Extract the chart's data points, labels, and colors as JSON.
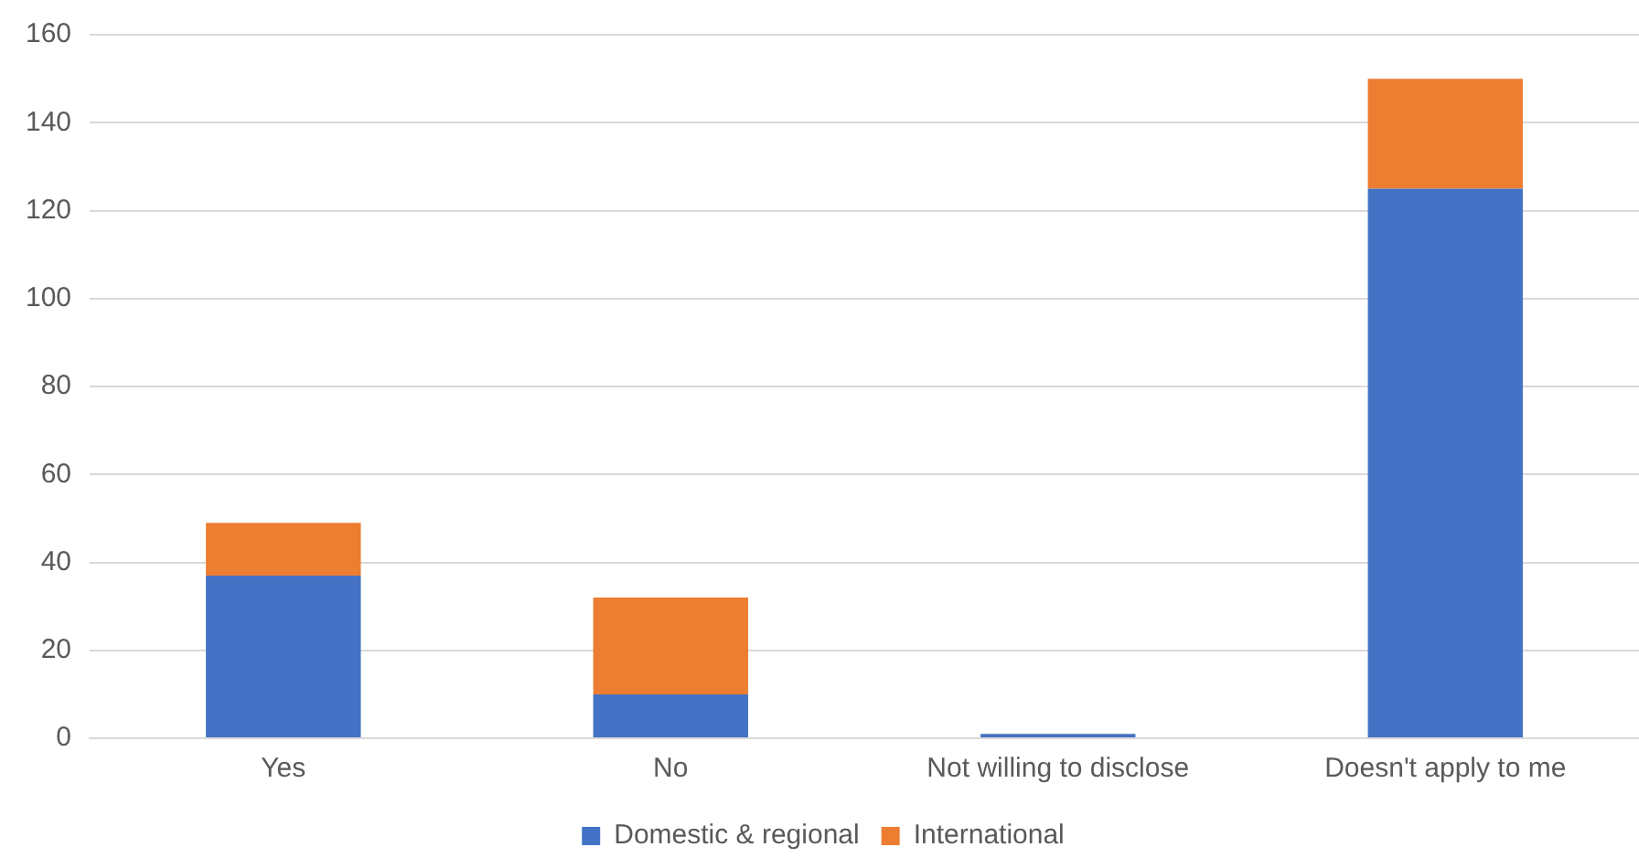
{
  "chart_data": {
    "type": "bar",
    "stacked": true,
    "categories": [
      "Yes",
      "No",
      "Not willing to disclose",
      "Doesn't apply to me"
    ],
    "series": [
      {
        "name": "Domestic & regional",
        "color": "#4472c4",
        "values": [
          37,
          10,
          1,
          125
        ]
      },
      {
        "name": "International",
        "color": "#ed7d31",
        "values": [
          12,
          22,
          0,
          25
        ]
      }
    ],
    "ylim": [
      0,
      160
    ],
    "yticks": [
      0,
      20,
      40,
      60,
      80,
      100,
      120,
      140,
      160
    ],
    "grid": "y",
    "legend": "bottom"
  }
}
